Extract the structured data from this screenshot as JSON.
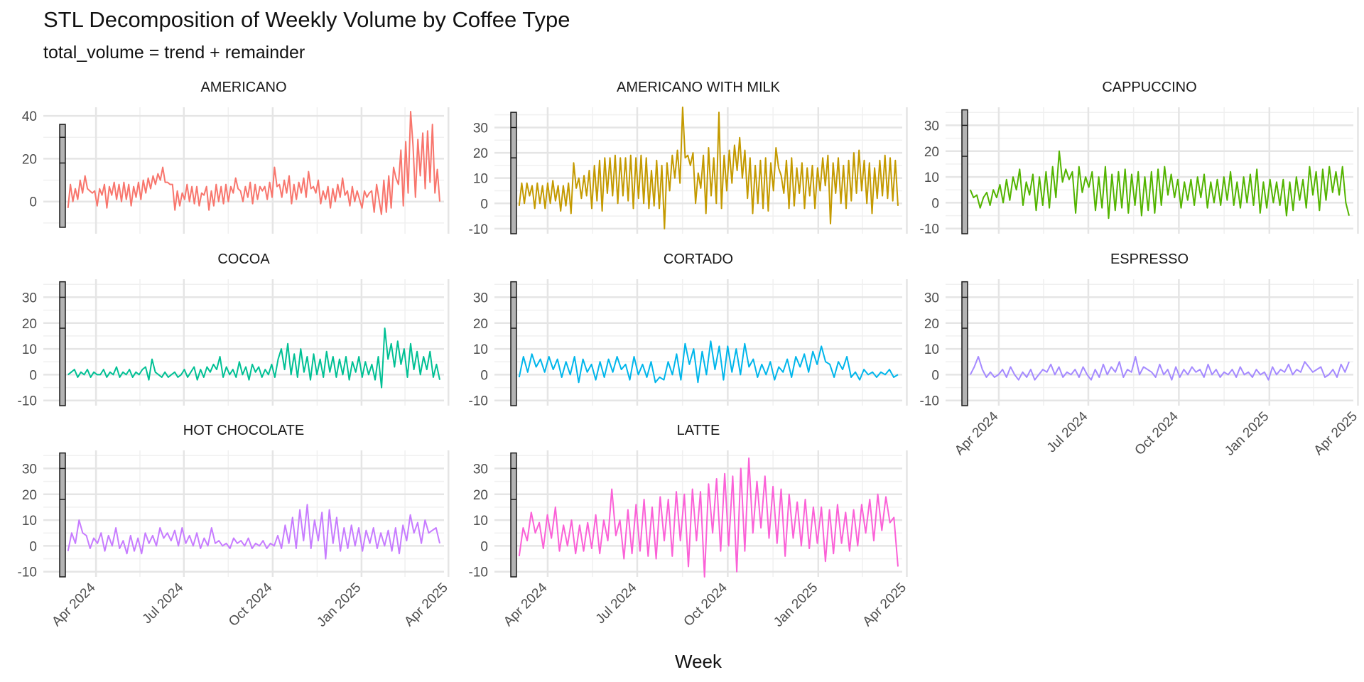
{
  "chart_data": {
    "type": "line",
    "facet": "wrap",
    "title": "STL Decomposition of Weekly Volume by Coffee Type",
    "subtitle": "total_volume = trend + remainder",
    "xlabel": "Week",
    "ylabel": "",
    "x_range": [
      "2024-03-01",
      "2025-03-23"
    ],
    "x_ticks": [
      {
        "value": "2024-04-01",
        "label": "Apr 2024"
      },
      {
        "value": "2024-07-01",
        "label": "Jul 2024"
      },
      {
        "value": "2024-10-01",
        "label": "Oct 2024"
      },
      {
        "value": "2025-01-01",
        "label": "Jan 2025"
      },
      {
        "value": "2025-04-01",
        "label": "Apr 2025"
      }
    ],
    "range_bar": {
      "from": -12,
      "to": 36,
      "marks": [
        18,
        30
      ]
    },
    "grid": true,
    "legend": "none",
    "facets": [
      {
        "name": "AMERICANO",
        "color": "#F8766D",
        "ylim": [
          -15,
          44
        ],
        "yticks": [
          0,
          20,
          40
        ],
        "values": [
          -3,
          8,
          0,
          6,
          1,
          10,
          4,
          12,
          6,
          5,
          4,
          5,
          -2,
          6,
          3,
          8,
          -3,
          7,
          3,
          9,
          1,
          8,
          0,
          9,
          1,
          8,
          -2,
          7,
          2,
          9,
          1,
          10,
          4,
          11,
          6,
          12,
          8,
          13,
          10,
          16,
          9,
          9,
          8,
          8,
          -4,
          5,
          -2,
          4,
          1,
          8,
          0,
          7,
          -1,
          7,
          -2,
          4,
          3,
          7,
          -4,
          5,
          -2,
          8,
          0,
          7,
          -1,
          8,
          0,
          7,
          4,
          11,
          6,
          5,
          0,
          7,
          2,
          9,
          -1,
          8,
          1,
          7,
          5,
          7,
          1,
          9,
          2,
          16,
          7,
          8,
          2,
          10,
          4,
          12,
          -1,
          8,
          1,
          9,
          4,
          11,
          2,
          14,
          6,
          7,
          4,
          10,
          -1,
          5,
          1,
          7,
          -3,
          6,
          0,
          8,
          2,
          11,
          3,
          5,
          -2,
          7,
          0,
          5,
          1,
          -3,
          5,
          2,
          4,
          5,
          -5,
          8,
          1,
          -6,
          10,
          -5,
          12,
          -3,
          16,
          11,
          8,
          24,
          -2,
          28,
          4,
          42,
          26,
          2,
          29,
          12,
          32,
          6,
          33,
          9,
          36,
          4,
          15,
          0
        ]
      },
      {
        "name": "AMERICANO WITH MILK",
        "color": "#C49A00",
        "ylim": [
          -12,
          38
        ],
        "yticks": [
          -10,
          0,
          10,
          20,
          30
        ],
        "values": [
          -1,
          8,
          0,
          8,
          3,
          7,
          -2,
          8,
          0,
          7,
          -2,
          8,
          0,
          9,
          1,
          7,
          -3,
          7,
          -1,
          8,
          -4,
          16,
          6,
          10,
          2,
          11,
          3,
          13,
          -2,
          15,
          1,
          17,
          -3,
          18,
          4,
          18,
          3,
          19,
          0,
          18,
          3,
          18,
          1,
          19,
          -2,
          18,
          2,
          19,
          0,
          18,
          -2,
          13,
          -1,
          17,
          -2,
          15,
          -10,
          16,
          5,
          19,
          10,
          21,
          8,
          38,
          18,
          19,
          15,
          20,
          0,
          12,
          6,
          19,
          -4,
          22,
          3,
          18,
          0,
          36,
          -2,
          19,
          5,
          21,
          8,
          23,
          13,
          26,
          10,
          21,
          2,
          18,
          -4,
          15,
          0,
          17,
          -2,
          18,
          -3,
          16,
          5,
          22,
          14,
          11,
          4,
          17,
          -2,
          18,
          -1,
          14,
          4,
          16,
          -2,
          14,
          3,
          15,
          -2,
          14,
          5,
          18,
          7,
          19,
          -8,
          16,
          4,
          18,
          0,
          15,
          -2,
          17,
          1,
          20,
          4,
          21,
          5,
          17,
          0,
          16,
          -4,
          14,
          2,
          17,
          3,
          19,
          2,
          18,
          1,
          17,
          -1
        ]
      },
      {
        "name": "CAPPUCCINO",
        "color": "#53B400",
        "ylim": [
          -12,
          37
        ],
        "yticks": [
          -10,
          0,
          10,
          20,
          30
        ],
        "values": [
          5,
          2,
          3,
          -2,
          2,
          4,
          -1,
          5,
          2,
          7,
          0,
          9,
          1,
          10,
          5,
          13,
          -1,
          8,
          3,
          11,
          -3,
          10,
          -1,
          12,
          -2,
          14,
          2,
          20,
          8,
          13,
          9,
          12,
          -4,
          14,
          4,
          10,
          6,
          12,
          -3,
          10,
          -2,
          14,
          -6,
          11,
          -3,
          12,
          -2,
          13,
          -4,
          11,
          -1,
          12,
          -5,
          10,
          -3,
          12,
          -4,
          13,
          -1,
          14,
          3,
          11,
          2,
          9,
          -2,
          8,
          1,
          9,
          -1,
          10,
          2,
          11,
          -2,
          8,
          0,
          9,
          -1,
          10,
          1,
          12,
          -1,
          8,
          -2,
          10,
          0,
          11,
          -1,
          13,
          -4,
          8,
          -2,
          9,
          0,
          8,
          -1,
          9,
          -5,
          8,
          -3,
          10,
          1,
          9,
          -2,
          14,
          3,
          12,
          -3,
          13,
          1,
          14,
          4,
          12,
          3,
          14,
          0,
          -5
        ]
      },
      {
        "name": "COCOA",
        "color": "#00C094",
        "ylim": [
          -12,
          37
        ],
        "yticks": [
          -10,
          0,
          10,
          20,
          30
        ],
        "values": [
          0,
          1,
          2,
          -1,
          1,
          0,
          2,
          -1,
          1,
          0,
          0,
          2,
          -1,
          1,
          0,
          3,
          -1,
          1,
          0,
          2,
          -1,
          1,
          0,
          2,
          3,
          -2,
          6,
          1,
          0,
          -1,
          1,
          -1,
          0,
          1,
          -1,
          0,
          2,
          -1,
          1,
          3,
          -2,
          2,
          -1,
          3,
          1,
          4,
          2,
          7,
          -1,
          3,
          0,
          2,
          -1,
          5,
          0,
          3,
          -2,
          4,
          1,
          3,
          -1,
          2,
          0,
          4,
          -1,
          6,
          10,
          2,
          12,
          0,
          8,
          -1,
          10,
          1,
          7,
          -2,
          8,
          0,
          6,
          -1,
          9,
          1,
          7,
          -1,
          6,
          0,
          7,
          -2,
          5,
          1,
          7,
          -1,
          5,
          0,
          4,
          -2,
          7,
          -5,
          18,
          6,
          12,
          3,
          13,
          4,
          10,
          -1,
          12,
          2,
          9,
          0,
          7,
          2,
          9,
          -1,
          4,
          -2
        ]
      },
      {
        "name": "CORTADO",
        "color": "#00B6EB",
        "ylim": [
          -12,
          37
        ],
        "yticks": [
          -10,
          0,
          10,
          20,
          30
        ],
        "values": [
          -1,
          7,
          1,
          8,
          3,
          6,
          1,
          7,
          2,
          6,
          -1,
          5,
          0,
          7,
          -3,
          6,
          1,
          4,
          -2,
          5,
          -1,
          6,
          1,
          7,
          2,
          4,
          -2,
          7,
          0,
          4,
          -1,
          5,
          -3,
          -1,
          -2,
          5,
          0,
          8,
          -2,
          12,
          4,
          10,
          -3,
          9,
          0,
          13,
          2,
          11,
          -2,
          11,
          1,
          10,
          0,
          12,
          3,
          6,
          -1,
          4,
          0,
          5,
          -2,
          3,
          1,
          6,
          -1,
          7,
          3,
          8,
          1,
          9,
          4,
          11,
          5,
          4,
          -1,
          5,
          2,
          7,
          -1,
          1,
          -2,
          2,
          0,
          1,
          -1,
          1,
          0,
          2,
          -1,
          0
        ]
      },
      {
        "name": "ESPRESSO",
        "color": "#A58AFF",
        "ylim": [
          -12,
          37
        ],
        "yticks": [
          -10,
          0,
          10,
          20,
          30
        ],
        "values": [
          0,
          3,
          7,
          2,
          -1,
          1,
          -1,
          0,
          2,
          -1,
          3,
          0,
          -2,
          1,
          -1,
          2,
          -2,
          0,
          2,
          1,
          4,
          0,
          3,
          -1,
          1,
          0,
          2,
          -1,
          3,
          0,
          -2,
          2,
          -1,
          4,
          0,
          3,
          1,
          5,
          -1,
          2,
          1,
          7,
          0,
          3,
          2,
          1,
          -1,
          4,
          0,
          2,
          -2,
          3,
          -1,
          2,
          0,
          3,
          1,
          2,
          -1,
          4,
          0,
          2,
          -1,
          1,
          0,
          2,
          -1,
          3,
          0,
          1,
          -1,
          2,
          0,
          1,
          -2,
          3,
          0,
          2,
          1,
          4,
          0,
          2,
          1,
          5,
          3,
          1,
          2,
          3,
          -1,
          0,
          2,
          -1,
          4,
          1,
          5
        ]
      },
      {
        "name": "HOT CHOCOLATE",
        "color": "#C77CFF",
        "ylim": [
          -12,
          37
        ],
        "yticks": [
          -10,
          0,
          10,
          20,
          30
        ],
        "values": [
          -2,
          5,
          1,
          10,
          5,
          4,
          -1,
          3,
          1,
          5,
          -2,
          4,
          0,
          7,
          -1,
          2,
          -3,
          4,
          -2,
          3,
          -3,
          5,
          1,
          4,
          0,
          7,
          3,
          5,
          2,
          6,
          0,
          7,
          1,
          4,
          0,
          5,
          -1,
          3,
          0,
          7,
          1,
          2,
          0,
          1,
          -1,
          3,
          1,
          2,
          0,
          3,
          -1,
          1,
          0,
          2,
          -1,
          1,
          0,
          4,
          -1,
          8,
          1,
          11,
          -1,
          14,
          2,
          16,
          -1,
          10,
          2,
          13,
          -5,
          14,
          1,
          11,
          -2,
          7,
          -1,
          8,
          0,
          7,
          -2,
          6,
          1,
          7,
          -1,
          5,
          0,
          6,
          -2,
          7,
          -3,
          8,
          2,
          12,
          5,
          9,
          1,
          10,
          5,
          6,
          7,
          1
        ]
      },
      {
        "name": "LATTE",
        "color": "#FB61D7",
        "ylim": [
          -12,
          37
        ],
        "yticks": [
          -10,
          0,
          10,
          20,
          30
        ],
        "values": [
          -4,
          7,
          2,
          13,
          5,
          9,
          -1,
          12,
          3,
          15,
          -2,
          8,
          0,
          10,
          -3,
          8,
          -2,
          9,
          -1,
          12,
          -3,
          10,
          2,
          22,
          4,
          10,
          -5,
          14,
          -3,
          16,
          -2,
          18,
          -4,
          15,
          -5,
          19,
          2,
          18,
          -4,
          21,
          2,
          20,
          -8,
          22,
          2,
          21,
          -12,
          24,
          5,
          26,
          -2,
          28,
          0,
          27,
          -10,
          30,
          -2,
          34,
          5,
          25,
          7,
          27,
          3,
          23,
          1,
          22,
          -4,
          20,
          3,
          17,
          0,
          18,
          -1,
          15,
          1,
          15,
          -6,
          14,
          -3,
          16,
          1,
          13,
          -2,
          14,
          0,
          16,
          5,
          18,
          2,
          20,
          6,
          19,
          9,
          11,
          -8
        ]
      }
    ]
  }
}
